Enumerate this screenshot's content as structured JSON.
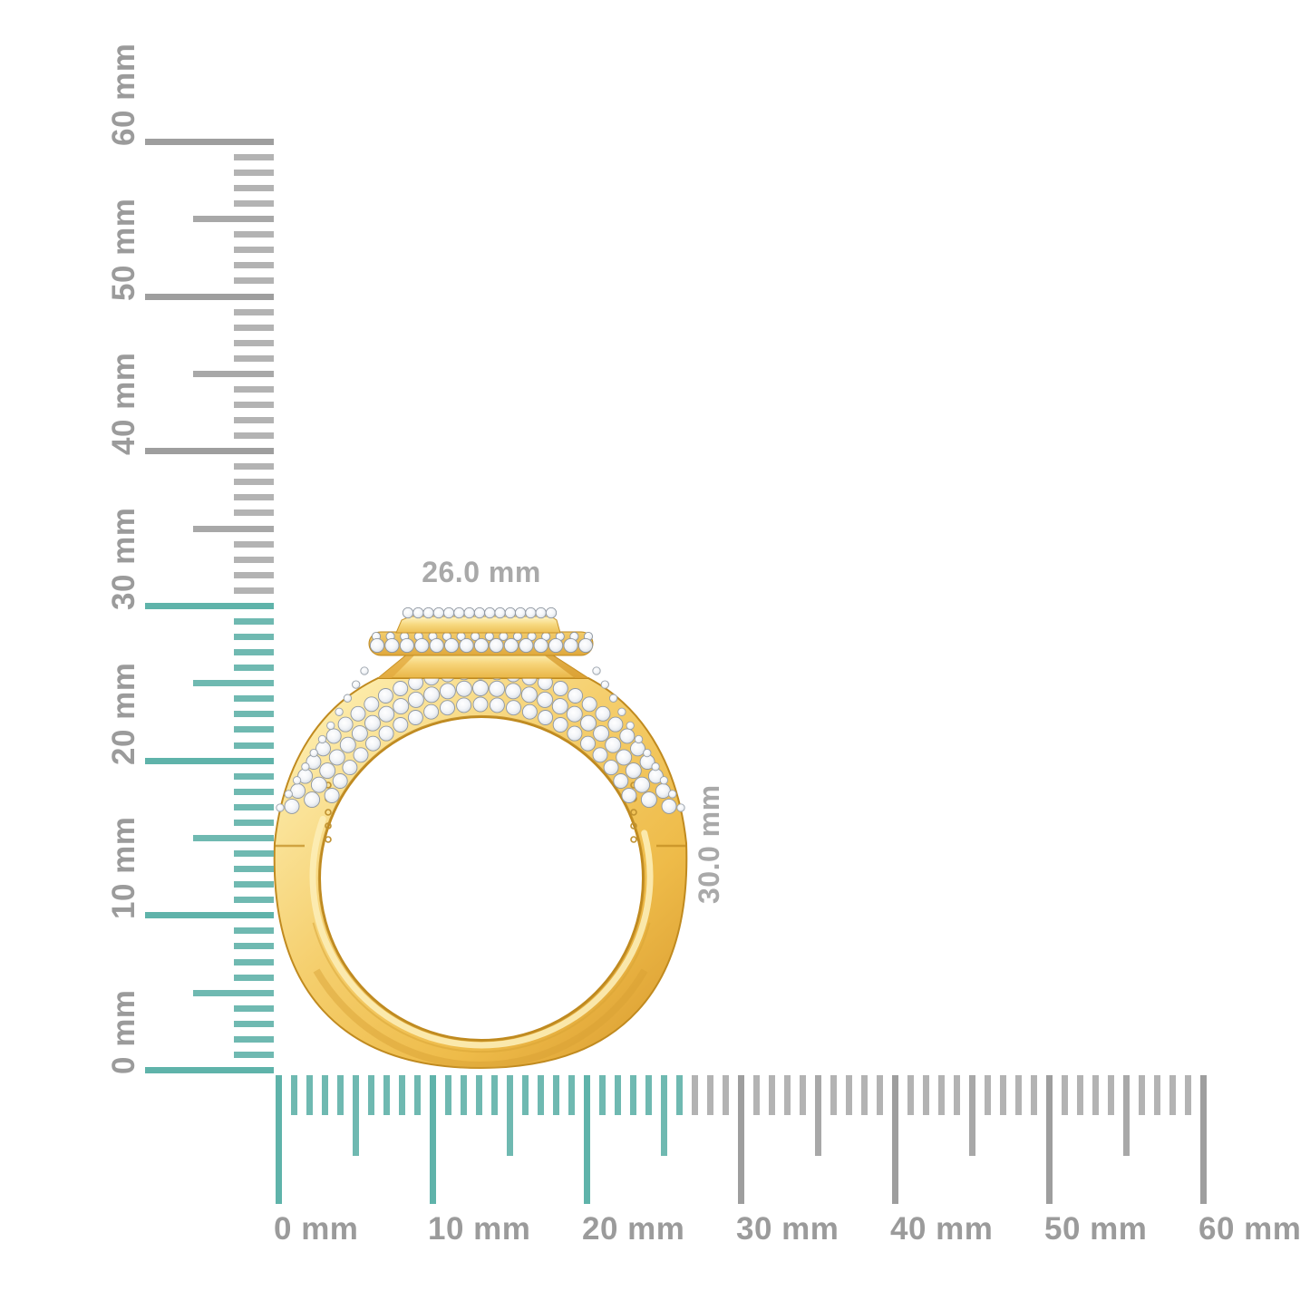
{
  "page": {
    "background": "#ffffff"
  },
  "product": {
    "description": "Yellow gold pave diamond ring, side profile view",
    "width_label": "26.0 mm",
    "height_label": "30.0 mm"
  },
  "rulers": {
    "unit": "mm",
    "vertical": {
      "range_mm": [
        0,
        60
      ],
      "major_step_mm": 10,
      "medium_step_mm": 5,
      "minor_step_mm": 1,
      "highlight_extent_mm": 30,
      "major_labels": [
        "0 mm",
        "10 mm",
        "20 mm",
        "30 mm",
        "40 mm",
        "50 mm",
        "60 mm"
      ]
    },
    "horizontal": {
      "range_mm": [
        0,
        60
      ],
      "major_step_mm": 10,
      "medium_step_mm": 5,
      "minor_step_mm": 1,
      "highlight_extent_mm": 26,
      "major_labels": [
        "0 mm",
        "10 mm",
        "20 mm",
        "30 mm",
        "40 mm",
        "50 mm",
        "60 mm"
      ]
    }
  },
  "colors": {
    "highlight": "#6fb9b1",
    "highlight_major": "#5fb3aa",
    "tick_minor": "#b3b3b3",
    "tick_medium": "#a8a8a8",
    "tick_major": "#9e9e9e",
    "ruler_label": "#9b9b9b",
    "dimension_label": "#a9a9a9",
    "gold_mid": "#f2c55c",
    "gold_shadow": "#c08a1f",
    "diamond_fill": "#eef1f5",
    "diamond_edge": "#8f97a1"
  }
}
